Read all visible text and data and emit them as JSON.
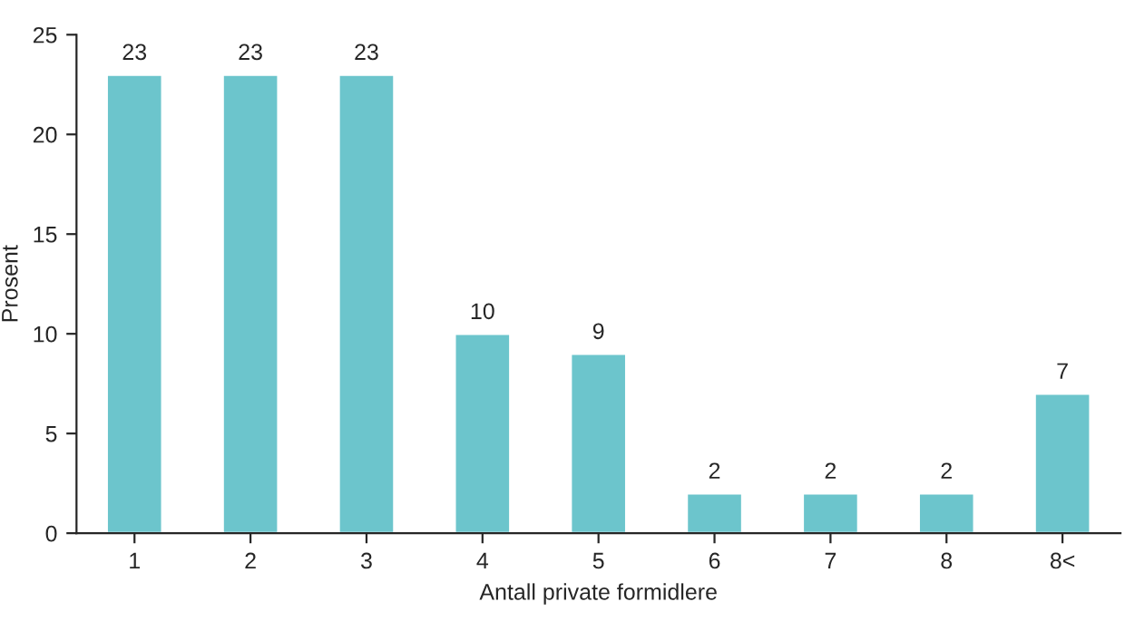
{
  "chart_data": {
    "type": "bar",
    "xlabel": "Antall private formidlere",
    "ylabel": "Prosent",
    "categories": [
      "1",
      "2",
      "3",
      "4",
      "5",
      "6",
      "7",
      "8",
      "8<"
    ],
    "values": [
      23,
      23,
      23,
      10,
      9,
      2,
      2,
      2,
      7
    ],
    "color": "#6cc5cc",
    "ylim": [
      0,
      25
    ],
    "yticks": [
      0,
      5,
      10,
      15,
      20,
      25
    ],
    "data_labels": true,
    "grid": false,
    "legend": false
  }
}
